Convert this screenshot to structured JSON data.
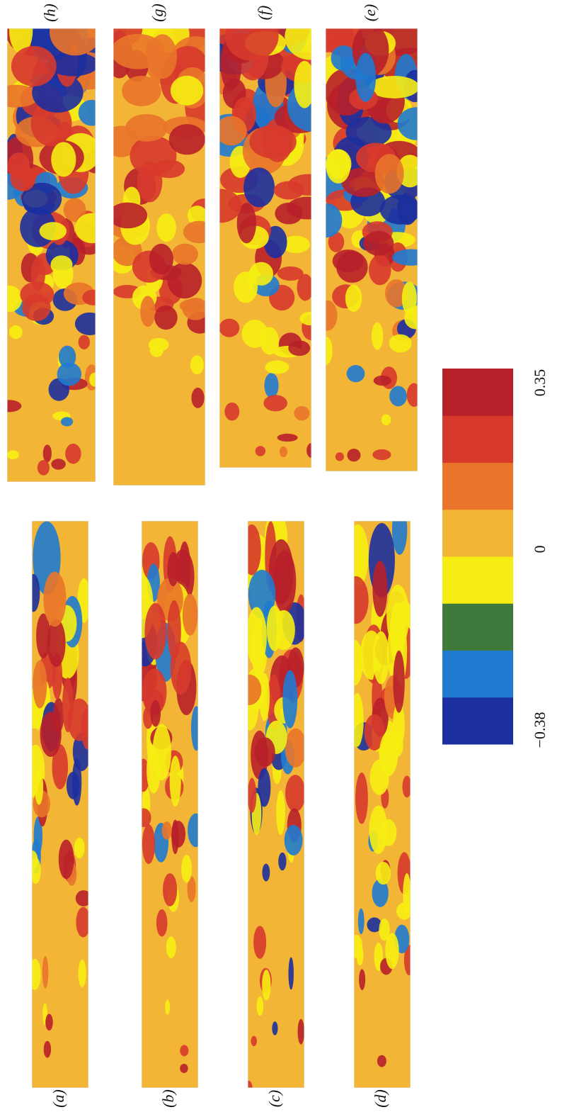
{
  "panels": [
    "(a)",
    "(b)",
    "(c)",
    "(d)",
    "(e)",
    "(f)",
    "(g)",
    "(h)"
  ],
  "colorbar": {
    "colors": [
      "#1c2f9e",
      "#1f7ad0",
      "#3f7a3c",
      "#f6ee13",
      "#f3b536",
      "#e9742a",
      "#d73a2c",
      "#b8202a"
    ],
    "ticks": [
      {
        "value": -0.38,
        "label": "−0.38"
      },
      0,
      0.35
    ]
  }
}
